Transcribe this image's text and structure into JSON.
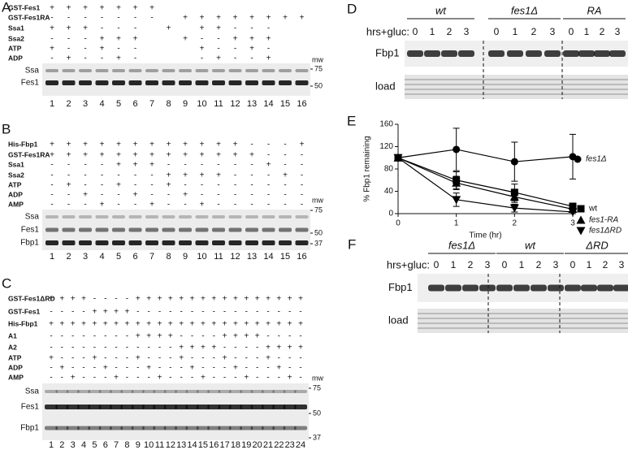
{
  "panels": {
    "A": {
      "label": "A",
      "rows": [
        {
          "name": "GST-Fes1",
          "cells": [
            "+",
            "+",
            "+",
            "+",
            "+",
            "+",
            "+",
            null,
            null,
            null,
            null,
            null,
            null,
            null,
            null,
            null
          ]
        },
        {
          "name": "GST-Fes1RA",
          "cells": [
            "-",
            "-",
            "-",
            "-",
            "-",
            "-",
            "-",
            null,
            "+",
            "+",
            "+",
            "+",
            "+",
            "+",
            "+",
            "+"
          ]
        },
        {
          "name": "Ssa1",
          "cells": [
            "+",
            "+",
            "+",
            "-",
            "-",
            "-",
            null,
            "+",
            null,
            "+",
            "+",
            "-",
            "-",
            "-",
            null,
            null
          ]
        },
        {
          "name": "Ssa2",
          "cells": [
            "-",
            "-",
            "-",
            "+",
            "+",
            "+",
            null,
            null,
            "+",
            "-",
            "-",
            "+",
            "+",
            "+",
            null,
            null
          ]
        },
        {
          "name": "ATP",
          "cells": [
            "+",
            "-",
            "-",
            "+",
            "-",
            "-",
            null,
            null,
            null,
            "+",
            "-",
            "-",
            "+",
            "-",
            null,
            null
          ]
        },
        {
          "name": "ADP",
          "cells": [
            "-",
            "+",
            "-",
            "-",
            "+",
            "-",
            null,
            null,
            null,
            "-",
            "+",
            "-",
            "-",
            "+",
            null,
            null
          ]
        }
      ],
      "bands": [
        "Ssa",
        "Fes1"
      ],
      "mw_title": "mw",
      "mw": [
        75,
        50
      ],
      "lanes": [
        1,
        2,
        3,
        4,
        5,
        6,
        7,
        8,
        9,
        10,
        11,
        12,
        13,
        14,
        15,
        16
      ]
    },
    "B": {
      "label": "B",
      "rows": [
        {
          "name": "His-Fbp1",
          "cells": [
            "+",
            "+",
            "+",
            "+",
            "+",
            "+",
            "+",
            "+",
            "+",
            "+",
            "+",
            "+",
            "-",
            "-",
            "-",
            "+"
          ]
        },
        {
          "name": "GST-Fes1RA",
          "cells": [
            "+",
            "+",
            "+",
            "+",
            "+",
            "+",
            "+",
            "+",
            "+",
            "+",
            "+",
            "+",
            "+",
            "-",
            "-",
            "-"
          ]
        },
        {
          "name": "Ssa1",
          "cells": [
            "-",
            "-",
            "-",
            "-",
            "+",
            "+",
            "+",
            "-",
            "-",
            "-",
            "-",
            "-",
            "-",
            "+",
            "-",
            "-"
          ]
        },
        {
          "name": "Ssa2",
          "cells": [
            "-",
            "-",
            "-",
            "-",
            "-",
            "-",
            "-",
            "+",
            "+",
            "+",
            "+",
            "-",
            "-",
            "-",
            "+",
            "-"
          ]
        },
        {
          "name": "ATP",
          "cells": [
            "-",
            "+",
            "-",
            "-",
            "+",
            "-",
            "-",
            "+",
            "-",
            "-",
            "-",
            "-",
            "-",
            "-",
            "-",
            "-"
          ]
        },
        {
          "name": "ADP",
          "cells": [
            "-",
            "-",
            "+",
            "-",
            "-",
            "+",
            "-",
            "-",
            "+",
            "-",
            "-",
            "-",
            "-",
            "-",
            "-",
            "-"
          ]
        },
        {
          "name": "AMP",
          "cells": [
            "-",
            "-",
            "-",
            "+",
            "-",
            "-",
            "+",
            "-",
            "-",
            "+",
            "-",
            "-",
            "-",
            "-",
            "-",
            "-"
          ]
        }
      ],
      "bands": [
        "Ssa",
        "Fes1",
        "Fbp1"
      ],
      "mw_title": "mw",
      "mw": [
        75,
        50,
        37
      ],
      "lanes": [
        1,
        2,
        3,
        4,
        5,
        6,
        7,
        8,
        9,
        10,
        11,
        12,
        13,
        14,
        15,
        16
      ]
    },
    "C": {
      "label": "C",
      "rows": [
        {
          "name": "GST-Fes1ΔRD",
          "cells": [
            "+",
            "+",
            "+",
            "+",
            "-",
            "-",
            "-",
            "-",
            "+",
            "+",
            "+",
            "+",
            "+",
            "+",
            "+",
            "+",
            "+",
            "+",
            "+",
            "+",
            "+",
            "+",
            "+",
            "+"
          ]
        },
        {
          "name": "GST-Fes1",
          "cells": [
            "-",
            "-",
            "-",
            "-",
            "+",
            "+",
            "+",
            "+",
            "-",
            "-",
            "-",
            "-",
            "-",
            "-",
            "-",
            "-",
            "-",
            "-",
            "-",
            "-",
            "-",
            "-",
            "-",
            "-"
          ]
        },
        {
          "name": "His-Fbp1",
          "cells": [
            "+",
            "+",
            "+",
            "+",
            "+",
            "+",
            "+",
            "+",
            "+",
            "+",
            "+",
            "+",
            "+",
            "+",
            "+",
            "+",
            "+",
            "+",
            "+",
            "+",
            "+",
            "+",
            "+",
            "+"
          ]
        },
        {
          "name": "A1",
          "cells": [
            "-",
            "-",
            "-",
            "-",
            "-",
            "-",
            "-",
            "-",
            "+",
            "+",
            "+",
            "+",
            "-",
            "-",
            "-",
            "-",
            "+",
            "+",
            "+",
            "+",
            "-",
            "-",
            "-",
            "-"
          ]
        },
        {
          "name": "A2",
          "cells": [
            "-",
            "-",
            "-",
            "-",
            "-",
            "-",
            "-",
            "-",
            "-",
            "-",
            "-",
            "-",
            "+",
            "+",
            "+",
            "+",
            "-",
            "-",
            "-",
            "-",
            "+",
            "+",
            "+",
            "+"
          ]
        },
        {
          "name": "ATP",
          "cells": [
            "+",
            "-",
            "-",
            "-",
            "+",
            "-",
            "-",
            "-",
            "+",
            "-",
            "-",
            "-",
            "+",
            "-",
            "-",
            "-",
            "+",
            "-",
            "-",
            "-",
            "+",
            "-",
            "-",
            "-"
          ]
        },
        {
          "name": "ADP",
          "cells": [
            "-",
            "+",
            "-",
            "-",
            "-",
            "+",
            "-",
            "-",
            "-",
            "+",
            "-",
            "-",
            "-",
            "+",
            "-",
            "-",
            "-",
            "+",
            "-",
            "-",
            "-",
            "+",
            "-",
            "-"
          ]
        },
        {
          "name": "AMP",
          "cells": [
            "-",
            "-",
            "+",
            "-",
            "-",
            "-",
            "+",
            "-",
            "-",
            "-",
            "+",
            "-",
            "-",
            "-",
            "+",
            "-",
            "-",
            "-",
            "+",
            "-",
            "-",
            "-",
            "+",
            "-"
          ]
        }
      ],
      "bands": [
        "Ssa",
        "Fes1",
        "Fbp1"
      ],
      "mw_title": "mw",
      "mw": [
        75,
        50,
        37
      ],
      "lanes": [
        1,
        2,
        3,
        4,
        5,
        6,
        7,
        8,
        9,
        10,
        11,
        12,
        13,
        14,
        15,
        16,
        17,
        18,
        19,
        20,
        21,
        22,
        23,
        24
      ]
    },
    "D": {
      "label": "D",
      "time_label": "hrs+gluc:",
      "groups": [
        {
          "name": "wt",
          "times": [
            0,
            1,
            2,
            3
          ]
        },
        {
          "name": "fes1Δ",
          "times": [
            0,
            1,
            2,
            3
          ]
        },
        {
          "name": "RA",
          "times": [
            0,
            1,
            2,
            3
          ]
        }
      ],
      "rows": [
        "Fbp1",
        "load"
      ]
    },
    "F": {
      "label": "F",
      "time_label": "hrs+gluc:",
      "groups": [
        {
          "name": "fes1Δ",
          "times": [
            0,
            1,
            2,
            3
          ]
        },
        {
          "name": "wt",
          "times": [
            0,
            1,
            2,
            3
          ]
        },
        {
          "name": "ΔRD",
          "times": [
            0,
            1,
            2,
            3
          ]
        }
      ],
      "rows": [
        "Fbp1",
        "load"
      ]
    }
  },
  "chart_data": {
    "type": "line",
    "panel_label": "E",
    "y_label": "% Fbp1 remaining",
    "x_label": "Time (hr)",
    "x": [
      0,
      1,
      2,
      3
    ],
    "xlim": [
      0,
      3
    ],
    "xticks": [
      0,
      1,
      2,
      3
    ],
    "ylim": [
      0,
      160
    ],
    "yticks": [
      0,
      40,
      80,
      120,
      160
    ],
    "series": [
      {
        "name": "fes1Δ",
        "color": "#000000",
        "marker": "circle",
        "italic": true,
        "values": [
          100,
          115,
          93,
          102
        ],
        "errors": [
          null,
          38,
          35,
          40
        ]
      },
      {
        "name": "wt",
        "color": "#000000",
        "marker": "square",
        "italic": false,
        "values": [
          100,
          60,
          38,
          13
        ],
        "errors": [
          null,
          15,
          15,
          6
        ]
      },
      {
        "name": "fes1-RA",
        "color": "#000000",
        "marker": "triangle",
        "italic": true,
        "values": [
          100,
          55,
          30,
          8
        ],
        "errors": [
          null,
          12,
          10,
          5
        ]
      },
      {
        "name": "fes1ΔRD",
        "color": "#000000",
        "marker": "triangle-down",
        "italic": true,
        "values": [
          100,
          25,
          10,
          3
        ],
        "errors": [
          null,
          12,
          7,
          3
        ]
      }
    ]
  }
}
